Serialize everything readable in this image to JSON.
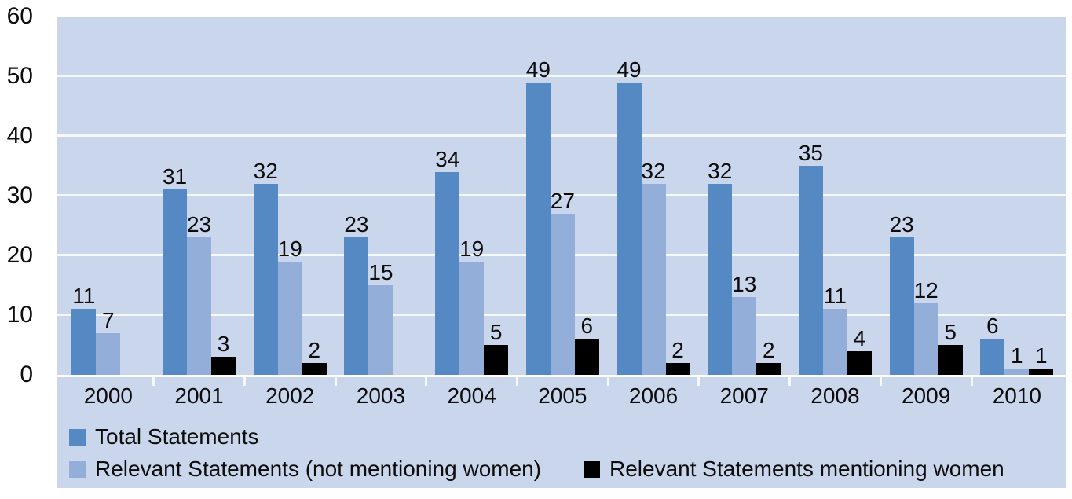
{
  "chart_data": {
    "type": "bar",
    "title": "",
    "xlabel": "",
    "ylabel": "",
    "categories": [
      "2000",
      "2001",
      "2002",
      "2003",
      "2004",
      "2005",
      "2006",
      "2007",
      "2008",
      "2009",
      "2010"
    ],
    "series": [
      {
        "name": "Total Statements",
        "color": "#5589c4",
        "values": [
          11,
          31,
          32,
          23,
          34,
          49,
          49,
          32,
          35,
          23,
          6
        ]
      },
      {
        "name": "Relevant Statements (not mentioning women)",
        "color": "#93aed9",
        "values": [
          7,
          23,
          19,
          15,
          19,
          27,
          32,
          13,
          11,
          12,
          1
        ]
      },
      {
        "name": "Relevant Statements mentioning women",
        "color": "#000000",
        "values": [
          null,
          3,
          2,
          null,
          5,
          6,
          2,
          2,
          4,
          5,
          1
        ]
      }
    ],
    "ylim": [
      0,
      60
    ],
    "y_ticks": [
      0,
      10,
      20,
      30,
      40,
      50,
      60
    ],
    "grid": "horizontal white lines every 10 units",
    "data_labels": true,
    "legend_position": "bottom",
    "colors": {
      "plot_background": "#cad6ec",
      "gridline": "#f6f9fc",
      "text": "#0c0c0c",
      "page_background": "#ffffff"
    }
  }
}
